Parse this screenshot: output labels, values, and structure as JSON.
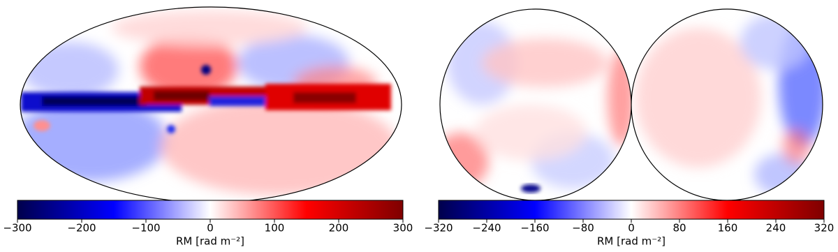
{
  "chart_data": [
    {
      "type": "colorbar-map",
      "xlabel": "RM [rad m⁻²]",
      "xlim": [
        -300,
        300
      ],
      "xticks": [
        {
          "value": -300,
          "label": "−300"
        },
        {
          "value": -200,
          "label": "−200"
        },
        {
          "value": -100,
          "label": "−100"
        },
        0,
        100,
        200,
        300
      ]
    },
    {
      "type": "colorbar-map",
      "xlabel": "RM [rad m⁻²]",
      "xlim": [
        -320,
        320
      ],
      "xticks": [
        {
          "value": -320,
          "label": "−320"
        },
        {
          "value": -240,
          "label": "−240"
        },
        {
          "value": -160,
          "label": "−160"
        },
        {
          "value": -80,
          "label": "−80"
        },
        0,
        80,
        160,
        240,
        320
      ]
    }
  ]
}
